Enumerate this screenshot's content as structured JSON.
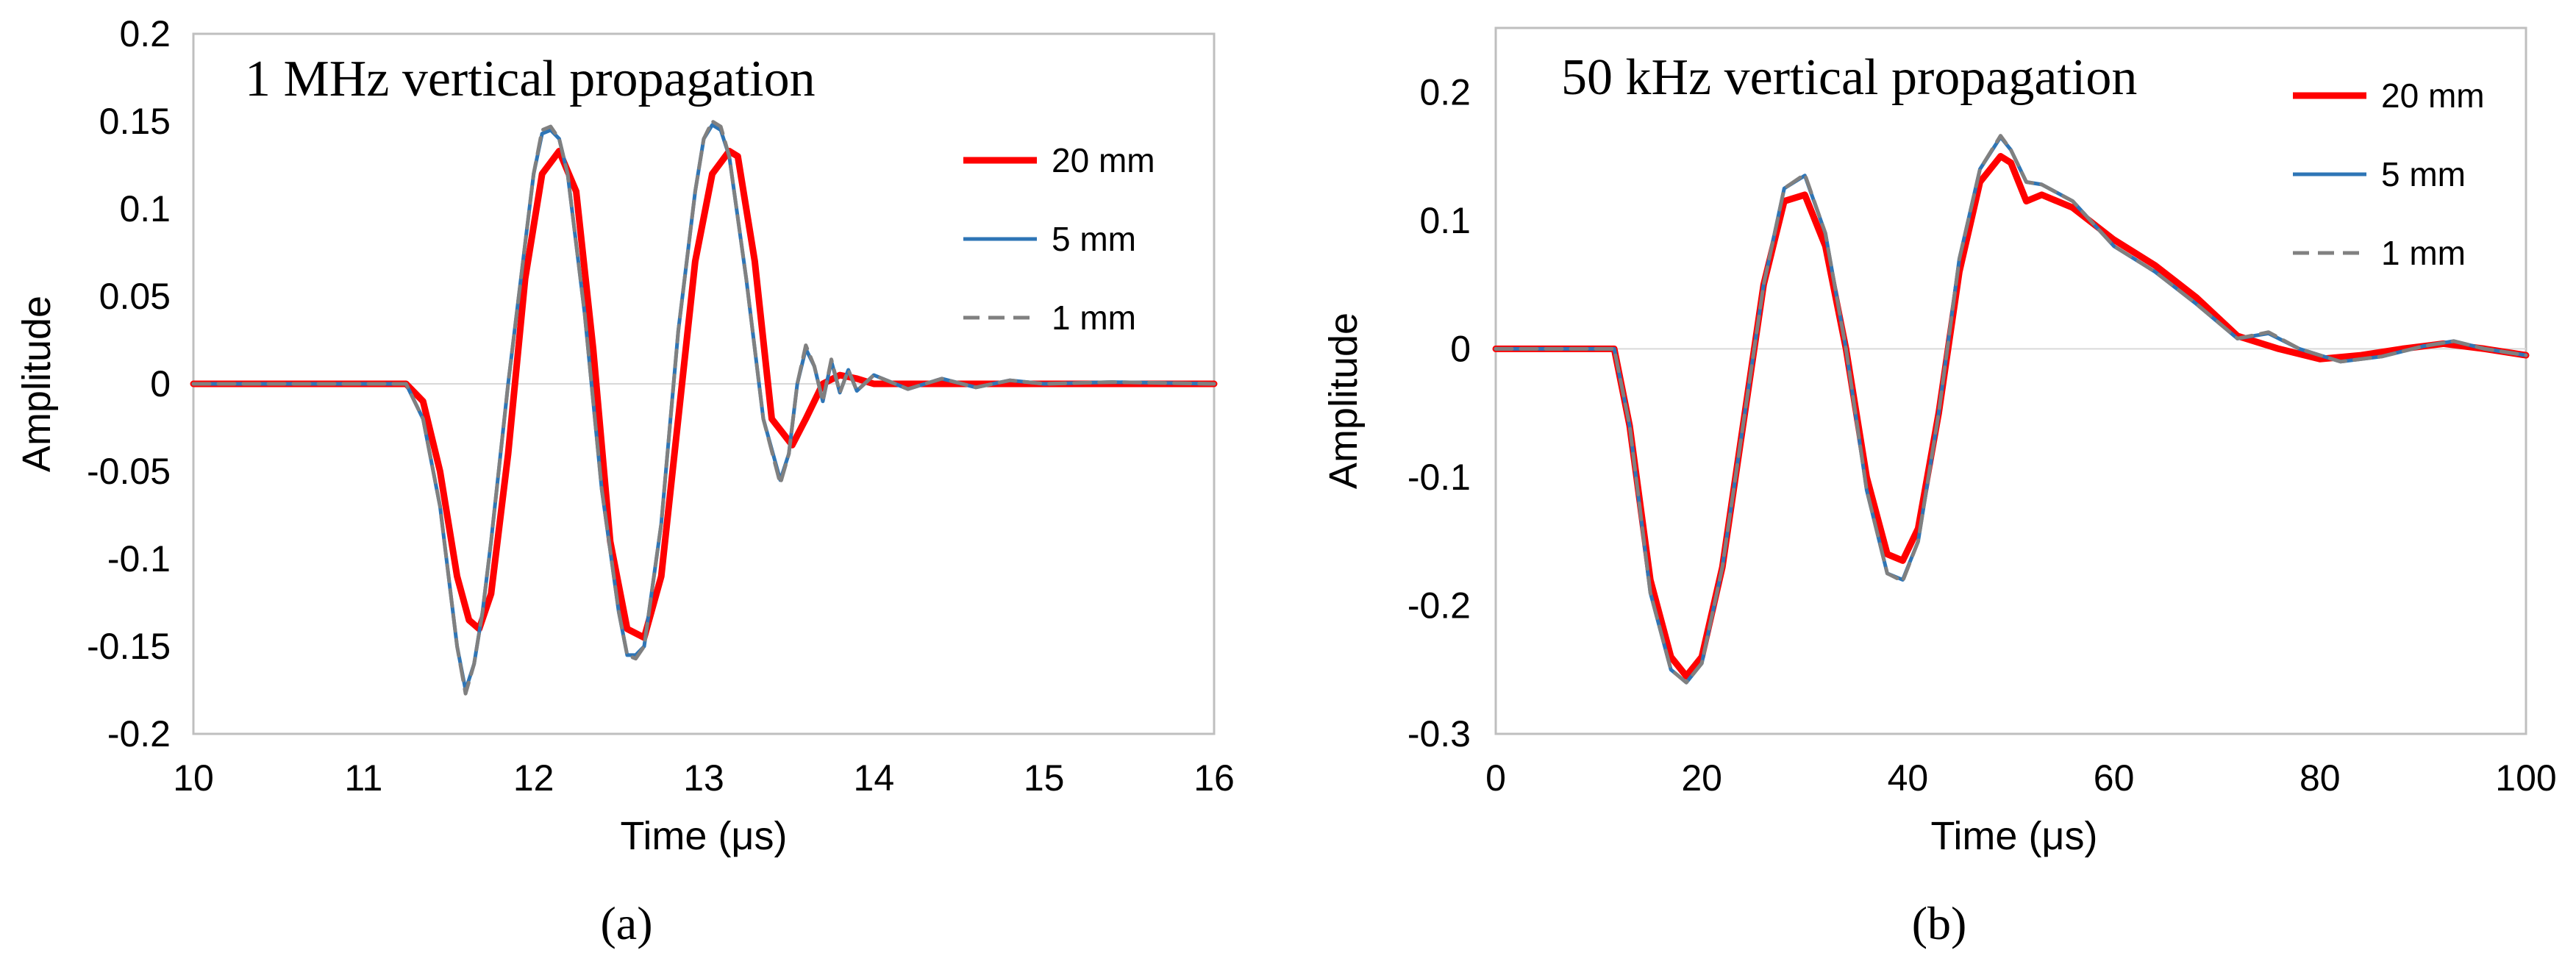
{
  "chart_data": [
    {
      "type": "line",
      "panel": "a",
      "title": "1 MHz vertical propagation",
      "xlabel": "Time (μs)",
      "ylabel": "Amplitude",
      "xlim": [
        10,
        16
      ],
      "ylim": [
        -0.2,
        0.2
      ],
      "xticks": [
        10,
        11,
        12,
        13,
        14,
        15,
        16
      ],
      "xtick_labels": [
        "10",
        "11",
        "12",
        "13",
        "14",
        "15",
        "16"
      ],
      "yticks": [
        0.2,
        0.15,
        0.1,
        0.05,
        0,
        -0.05,
        -0.1,
        -0.15,
        -0.2
      ],
      "ytick_labels": [
        "0.2",
        "0.15",
        "0.1",
        "0.05",
        "0",
        "-0.05",
        "-0.1",
        "-0.15",
        "-0.2"
      ],
      "caption": "(a)",
      "legend_position": "right",
      "series": [
        {
          "name": "20 mm",
          "color": "#ff0000",
          "style": "solid-thick",
          "x": [
            10.0,
            11.25,
            11.35,
            11.45,
            11.55,
            11.62,
            11.68,
            11.75,
            11.85,
            11.95,
            12.05,
            12.15,
            12.25,
            12.35,
            12.45,
            12.55,
            12.65,
            12.75,
            12.85,
            12.95,
            13.05,
            13.15,
            13.2,
            13.3,
            13.4,
            13.52,
            13.6,
            13.7,
            13.8,
            13.9,
            14.0,
            14.5,
            16.0
          ],
          "y": [
            0.0,
            0.0,
            -0.01,
            -0.05,
            -0.11,
            -0.135,
            -0.14,
            -0.12,
            -0.04,
            0.06,
            0.12,
            0.133,
            0.11,
            0.02,
            -0.09,
            -0.14,
            -0.145,
            -0.11,
            -0.02,
            0.07,
            0.12,
            0.133,
            0.13,
            0.07,
            -0.02,
            -0.035,
            -0.02,
            0.0,
            0.005,
            0.003,
            0.0,
            0.0,
            0.0
          ]
        },
        {
          "name": "5 mm",
          "color": "#2e75b6",
          "style": "solid",
          "x": [
            10.0,
            11.25,
            11.35,
            11.45,
            11.55,
            11.6,
            11.65,
            11.7,
            11.75,
            11.85,
            11.95,
            12.0,
            12.05,
            12.1,
            12.15,
            12.2,
            12.3,
            12.4,
            12.5,
            12.55,
            12.6,
            12.65,
            12.75,
            12.85,
            12.95,
            13.0,
            13.05,
            13.1,
            13.15,
            13.25,
            13.35,
            13.45,
            13.5,
            13.55,
            13.6,
            13.65,
            13.7,
            13.75,
            13.8,
            13.85,
            13.9,
            14.0,
            14.2,
            14.4,
            14.6,
            14.8,
            15.0,
            15.4,
            16.0
          ],
          "y": [
            0.0,
            0.0,
            -0.02,
            -0.07,
            -0.15,
            -0.175,
            -0.16,
            -0.13,
            -0.09,
            0.0,
            0.08,
            0.12,
            0.143,
            0.145,
            0.14,
            0.12,
            0.04,
            -0.06,
            -0.13,
            -0.155,
            -0.155,
            -0.15,
            -0.08,
            0.03,
            0.11,
            0.14,
            0.148,
            0.145,
            0.13,
            0.06,
            -0.02,
            -0.055,
            -0.04,
            0.0,
            0.02,
            0.01,
            -0.01,
            0.013,
            -0.005,
            0.008,
            -0.004,
            0.005,
            -0.003,
            0.003,
            -0.002,
            0.002,
            0.0,
            0.001,
            0.0
          ]
        },
        {
          "name": "1 mm",
          "color": "#808080",
          "style": "dashed",
          "x": [
            10.0,
            11.25,
            11.35,
            11.45,
            11.55,
            11.6,
            11.65,
            11.7,
            11.75,
            11.85,
            11.95,
            12.0,
            12.05,
            12.1,
            12.15,
            12.2,
            12.3,
            12.4,
            12.5,
            12.55,
            12.6,
            12.65,
            12.75,
            12.85,
            12.95,
            13.0,
            13.05,
            13.1,
            13.15,
            13.25,
            13.35,
            13.45,
            13.5,
            13.55,
            13.6,
            13.65,
            13.7,
            13.75,
            13.8,
            13.85,
            13.9,
            14.0,
            14.2,
            14.4,
            14.6,
            14.8,
            15.0,
            15.4,
            16.0
          ],
          "y": [
            0.0,
            0.0,
            -0.02,
            -0.07,
            -0.15,
            -0.177,
            -0.16,
            -0.13,
            -0.09,
            0.0,
            0.08,
            0.12,
            0.145,
            0.147,
            0.14,
            0.12,
            0.04,
            -0.06,
            -0.13,
            -0.155,
            -0.157,
            -0.15,
            -0.08,
            0.03,
            0.11,
            0.14,
            0.15,
            0.147,
            0.13,
            0.06,
            -0.02,
            -0.057,
            -0.04,
            0.0,
            0.022,
            0.01,
            -0.01,
            0.014,
            -0.005,
            0.008,
            -0.004,
            0.005,
            -0.003,
            0.003,
            -0.002,
            0.002,
            0.0,
            0.001,
            0.0
          ]
        }
      ]
    },
    {
      "type": "line",
      "panel": "b",
      "title": "50 kHz vertical propagation",
      "xlabel": "Time (μs)",
      "ylabel": "Amplitude",
      "xlim": [
        0,
        100
      ],
      "ylim": [
        -0.3,
        0.25
      ],
      "xticks": [
        0,
        20,
        40,
        60,
        80,
        100
      ],
      "xtick_labels": [
        "0",
        "20",
        "40",
        "60",
        "80",
        "100"
      ],
      "yticks": [
        0.2,
        0.1,
        0,
        -0.1,
        -0.2,
        -0.3
      ],
      "ytick_labels": [
        "0.2",
        "0.1",
        "0",
        "-0.1",
        "-0.2",
        "-0.3"
      ],
      "caption": "(b)",
      "legend_position": "top-right",
      "series": [
        {
          "name": "20 mm",
          "color": "#ff0000",
          "style": "solid-thick",
          "x": [
            0,
            11.5,
            13,
            15,
            17,
            18.5,
            20,
            22,
            24,
            26,
            28,
            30,
            32,
            34,
            36,
            38,
            39.5,
            41,
            43,
            45,
            47,
            49,
            50,
            51.5,
            53,
            56,
            60,
            64,
            68,
            72,
            76,
            80,
            84,
            88,
            92,
            96,
            100
          ],
          "y": [
            0,
            0,
            -0.06,
            -0.18,
            -0.24,
            -0.255,
            -0.24,
            -0.17,
            -0.06,
            0.05,
            0.115,
            0.12,
            0.08,
            0.0,
            -0.1,
            -0.16,
            -0.165,
            -0.14,
            -0.05,
            0.06,
            0.13,
            0.15,
            0.145,
            0.115,
            0.12,
            0.11,
            0.085,
            0.065,
            0.04,
            0.01,
            0.0,
            -0.008,
            -0.005,
            0.0,
            0.004,
            0.0,
            -0.005
          ]
        },
        {
          "name": "5 mm",
          "color": "#2e75b6",
          "style": "solid",
          "x": [
            0,
            11.5,
            13,
            15,
            17,
            18.5,
            20,
            22,
            24,
            26,
            28,
            30,
            32,
            34,
            36,
            38,
            39.5,
            41,
            43,
            45,
            47,
            49,
            50,
            51.5,
            53,
            56,
            60,
            64,
            68,
            72,
            75,
            78,
            82,
            86,
            90,
            93,
            96,
            100
          ],
          "y": [
            0,
            0,
            -0.06,
            -0.19,
            -0.25,
            -0.26,
            -0.245,
            -0.17,
            -0.06,
            0.05,
            0.125,
            0.135,
            0.09,
            0.0,
            -0.11,
            -0.175,
            -0.18,
            -0.15,
            -0.05,
            0.07,
            0.14,
            0.165,
            0.155,
            0.13,
            0.128,
            0.115,
            0.08,
            0.06,
            0.035,
            0.008,
            0.012,
            0.0,
            -0.01,
            -0.006,
            0.002,
            0.006,
            0.0,
            -0.005
          ]
        },
        {
          "name": "1 mm",
          "color": "#808080",
          "style": "dashed",
          "x": [
            0,
            11.5,
            13,
            15,
            17,
            18.5,
            20,
            22,
            24,
            26,
            28,
            30,
            32,
            34,
            36,
            38,
            39.5,
            41,
            43,
            45,
            47,
            49,
            50,
            51.5,
            53,
            56,
            60,
            64,
            68,
            72,
            75,
            78,
            82,
            86,
            90,
            93,
            96,
            100
          ],
          "y": [
            0,
            0,
            -0.06,
            -0.19,
            -0.25,
            -0.26,
            -0.245,
            -0.17,
            -0.06,
            0.05,
            0.125,
            0.136,
            0.09,
            0.0,
            -0.11,
            -0.175,
            -0.181,
            -0.15,
            -0.05,
            0.07,
            0.14,
            0.166,
            0.155,
            0.13,
            0.128,
            0.115,
            0.08,
            0.06,
            0.035,
            0.008,
            0.013,
            0.0,
            -0.01,
            -0.006,
            0.002,
            0.006,
            0.0,
            -0.005
          ]
        }
      ]
    }
  ]
}
